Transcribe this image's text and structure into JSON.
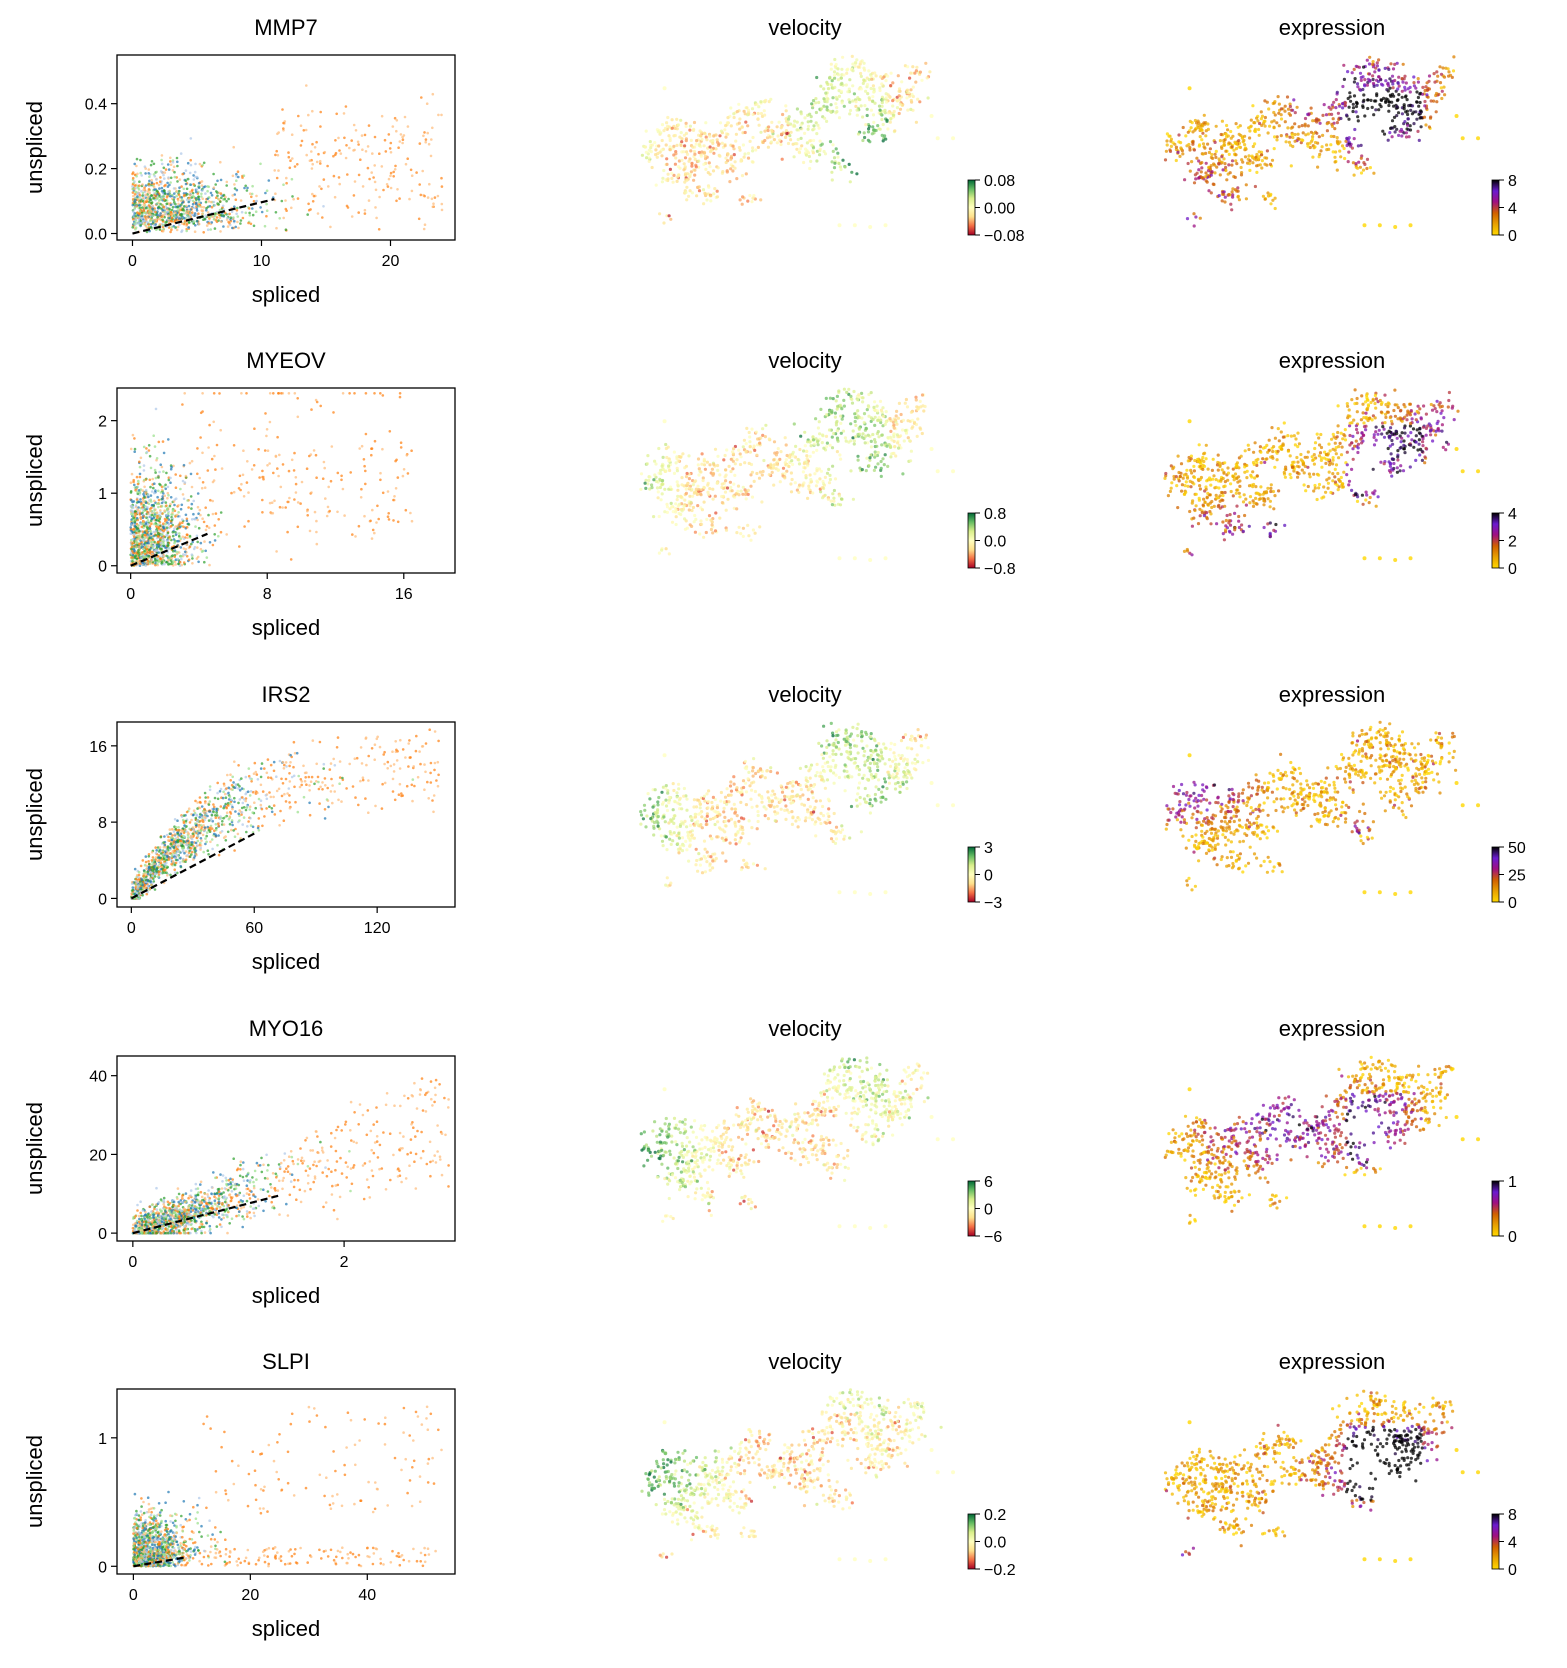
{
  "figure": {
    "column_titles": {
      "velocity": "velocity",
      "expression": "expression"
    },
    "colors": {
      "clusters": [
        "#1f77b4",
        "#aec7e8",
        "#ff7f0e",
        "#ffbb78",
        "#98df8a",
        "#2ca02c"
      ],
      "velocity_cmap": [
        "#a50026",
        "#f46d43",
        "#fee08b",
        "#ffffbf",
        "#d9ef8b",
        "#66bd63",
        "#006837"
      ],
      "expression_cmap": [
        "#ffd700",
        "#e8a000",
        "#d06000",
        "#a01080",
        "#6a1bd0",
        "#000000"
      ],
      "fit_line": "#000000"
    },
    "rows": [
      {
        "gene": "MMP7",
        "chart_data": {
          "type": "scatter",
          "title": "MMP7",
          "xlabel": "spliced",
          "ylabel": "unspliced",
          "xlim": [
            -1.2,
            25
          ],
          "ylim": [
            -0.02,
            0.55
          ],
          "xticks": [
            0,
            10,
            20
          ],
          "yticks": [
            0.0,
            0.2,
            0.4
          ],
          "xtick_labels": [
            "0",
            "10",
            "20"
          ],
          "ytick_labels": [
            "0.0",
            "0.2",
            "0.4"
          ],
          "fit_line": {
            "x": [
              0,
              11
            ],
            "y": [
              0,
              0.106
            ]
          },
          "cloud": {
            "x_core": 11,
            "x_tail": 24,
            "y_max": 0.52,
            "shape": "wedge",
            "n": 1300,
            "seed": 11
          }
        },
        "velocity_colorbar": {
          "ticks": [
            "0.08",
            "0.00",
            "−0.08"
          ]
        },
        "expression_colorbar": {
          "ticks": [
            "8",
            "4",
            "0"
          ]
        },
        "umap_seed": 101
      },
      {
        "gene": "MYEOV",
        "chart_data": {
          "type": "scatter",
          "title": "MYEOV",
          "xlabel": "spliced",
          "ylabel": "unspliced",
          "xlim": [
            -0.8,
            19
          ],
          "ylim": [
            -0.1,
            2.45
          ],
          "xticks": [
            0,
            8,
            16
          ],
          "yticks": [
            0,
            1,
            2
          ],
          "xtick_labels": [
            "0",
            "8",
            "16"
          ],
          "ytick_labels": [
            "0",
            "1",
            "2"
          ],
          "fit_line": {
            "x": [
              0,
              4.5
            ],
            "y": [
              0,
              0.44
            ]
          },
          "cloud": {
            "x_core": 5,
            "x_tail": 18.5,
            "y_max": 2.3,
            "shape": "column",
            "n": 1400,
            "seed": 22
          }
        },
        "velocity_colorbar": {
          "ticks": [
            "0.8",
            "0.0",
            "−0.8"
          ]
        },
        "expression_colorbar": {
          "ticks": [
            "4",
            "2",
            "0"
          ]
        },
        "umap_seed": 202
      },
      {
        "gene": "IRS2",
        "chart_data": {
          "type": "scatter",
          "title": "IRS2",
          "xlabel": "spliced",
          "ylabel": "unspliced",
          "xlim": [
            -7,
            158
          ],
          "ylim": [
            -0.9,
            18.5
          ],
          "xticks": [
            0,
            60,
            120
          ],
          "yticks": [
            0,
            8,
            16
          ],
          "xtick_labels": [
            "0",
            "60",
            "120"
          ],
          "ytick_labels": [
            "0",
            "8",
            "16"
          ],
          "fit_line": {
            "x": [
              0,
              60
            ],
            "y": [
              0,
              6.8
            ]
          },
          "cloud": {
            "x_core": 60,
            "x_tail": 150,
            "y_max": 18,
            "shape": "curve",
            "n": 1300,
            "seed": 33
          }
        },
        "velocity_colorbar": {
          "ticks": [
            "3",
            "0",
            "−3"
          ]
        },
        "expression_colorbar": {
          "ticks": [
            "50",
            "25",
            "0"
          ]
        },
        "umap_seed": 303
      },
      {
        "gene": "MYO16",
        "chart_data": {
          "type": "scatter",
          "title": "MYO16",
          "xlabel": "spliced",
          "ylabel": "unspliced",
          "xlim": [
            -0.15,
            3.05
          ],
          "ylim": [
            -2,
            45
          ],
          "xticks": [
            0,
            2
          ],
          "yticks": [
            0,
            20,
            40
          ],
          "xtick_labels": [
            "0",
            "2"
          ],
          "ytick_labels": [
            "0",
            "20",
            "40"
          ],
          "fit_line": {
            "x": [
              0,
              1.38
            ],
            "y": [
              0,
              9.5
            ]
          },
          "cloud": {
            "x_core": 1.3,
            "x_tail": 3.0,
            "y_max": 43,
            "shape": "diag",
            "n": 1400,
            "seed": 44
          }
        },
        "velocity_colorbar": {
          "ticks": [
            "6",
            "0",
            "−6"
          ]
        },
        "expression_colorbar": {
          "ticks": [
            "1",
            "0"
          ]
        },
        "umap_seed": 404
      },
      {
        "gene": "SLPI",
        "chart_data": {
          "type": "scatter",
          "title": "SLPI",
          "xlabel": "spliced",
          "ylabel": "unspliced",
          "xlim": [
            -2.8,
            55
          ],
          "ylim": [
            -0.06,
            1.38
          ],
          "xticks": [
            0,
            20,
            40
          ],
          "yticks": [
            0,
            1
          ],
          "xtick_labels": [
            "0",
            "20",
            "40"
          ],
          "ytick_labels": [
            "0",
            "1"
          ],
          "fit_line": {
            "x": [
              0,
              9
            ],
            "y": [
              0,
              0.07
            ]
          },
          "cloud": {
            "x_core": 12,
            "x_tail": 53,
            "y_max": 1.3,
            "shape": "blob",
            "n": 1300,
            "seed": 55
          }
        },
        "velocity_colorbar": {
          "ticks": [
            "0.2",
            "0.0",
            "−0.2"
          ]
        },
        "expression_colorbar": {
          "ticks": [
            "8",
            "4",
            "0"
          ]
        },
        "umap_seed": 505
      }
    ]
  }
}
